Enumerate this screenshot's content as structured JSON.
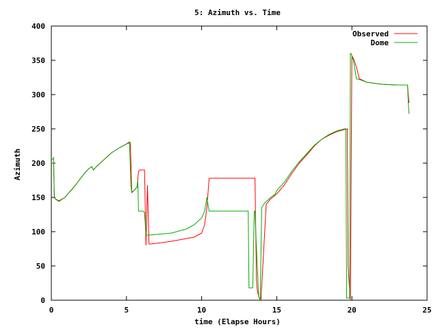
{
  "chart_data": {
    "type": "line",
    "title": "5: Azimuth vs. Time",
    "xlabel": "time (Elapse Hours)",
    "ylabel": "Azimuth",
    "xlim": [
      0,
      25
    ],
    "ylim": [
      0,
      400
    ],
    "xticks": [
      0,
      5,
      10,
      15,
      20,
      25
    ],
    "yticks": [
      0,
      50,
      100,
      150,
      200,
      250,
      300,
      350,
      400
    ],
    "legend": "top-right",
    "grid": false,
    "series": [
      {
        "name": "Observed",
        "color": "#ff0000",
        "x": [
          0,
          0.15,
          0.2,
          0.25,
          0.5,
          0.9,
          1.5,
          2.2,
          2.5,
          2.7,
          2.8,
          3.0,
          3.5,
          4.0,
          4.5,
          5.0,
          5.25,
          5.3,
          5.35,
          5.5,
          5.7,
          5.8,
          5.9,
          6.2,
          6.3,
          6.4,
          6.5,
          6.6,
          7.0,
          8.0,
          9.0,
          9.5,
          10.0,
          10.2,
          10.35,
          10.5,
          11.0,
          12.0,
          13.0,
          13.4,
          13.55,
          13.6,
          13.65,
          13.7,
          13.8,
          13.95,
          14.1,
          14.3,
          14.6,
          15.0,
          15.5,
          16.0,
          16.5,
          17.0,
          17.5,
          18.0,
          18.5,
          19.0,
          19.5,
          19.7,
          19.75,
          19.8,
          19.9,
          20.0,
          20.05,
          20.15,
          20.3,
          20.5,
          21.0,
          22.0,
          23.0,
          23.5,
          23.7,
          23.75,
          23.8
        ],
        "y": [
          200,
          200,
          150,
          148,
          145,
          150,
          165,
          185,
          192,
          195,
          190,
          195,
          205,
          215,
          222,
          228,
          230,
          200,
          157,
          160,
          165,
          188,
          190,
          190,
          80,
          168,
          82,
          82,
          83,
          86,
          90,
          92,
          98,
          110,
          135,
          178,
          178,
          178,
          178,
          178,
          178,
          100,
          30,
          15,
          5,
          0,
          60,
          140,
          148,
          155,
          168,
          185,
          200,
          212,
          225,
          235,
          241,
          246,
          249,
          250,
          50,
          30,
          0,
          355,
          355,
          350,
          340,
          323,
          318,
          315,
          314,
          314,
          314,
          300,
          288
        ]
      },
      {
        "name": "Dome",
        "color": "#00aa00",
        "x": [
          0,
          0.1,
          0.15,
          0.2,
          0.25,
          0.5,
          0.9,
          1.5,
          2.2,
          2.5,
          2.7,
          2.8,
          3.0,
          3.5,
          4.0,
          4.5,
          5.0,
          5.2,
          5.3,
          5.35,
          5.5,
          5.7,
          5.75,
          5.8,
          5.9,
          6.1,
          6.2,
          6.3,
          6.5,
          7.0,
          8.0,
          9.0,
          9.5,
          10.0,
          10.2,
          10.35,
          10.5,
          11.0,
          12.0,
          13.0,
          13.1,
          13.15,
          13.4,
          13.5,
          13.55,
          13.6,
          13.8,
          13.9,
          14.0,
          14.2,
          14.6,
          14.9,
          15.0,
          15.5,
          16.0,
          16.5,
          17.0,
          17.5,
          18.0,
          18.5,
          19.0,
          19.5,
          19.6,
          19.65,
          19.85,
          19.9,
          19.95,
          20.1,
          20.3,
          20.5,
          21.0,
          22.0,
          23.0,
          23.5,
          23.7,
          23.75,
          23.8
        ],
        "y": [
          205,
          206,
          208,
          150,
          148,
          144,
          150,
          165,
          185,
          192,
          195,
          190,
          195,
          205,
          215,
          222,
          228,
          231,
          165,
          158,
          160,
          165,
          175,
          130,
          130,
          130,
          128,
          95,
          95,
          96,
          98,
          104,
          110,
          120,
          130,
          150,
          130,
          130,
          130,
          130,
          130,
          18,
          18,
          130,
          130,
          100,
          5,
          0,
          135,
          142,
          150,
          155,
          160,
          172,
          188,
          202,
          214,
          226,
          235,
          242,
          247,
          250,
          250,
          3,
          3,
          360,
          360,
          350,
          323,
          322,
          318,
          315,
          314,
          314,
          314,
          290,
          272
        ]
      }
    ]
  }
}
